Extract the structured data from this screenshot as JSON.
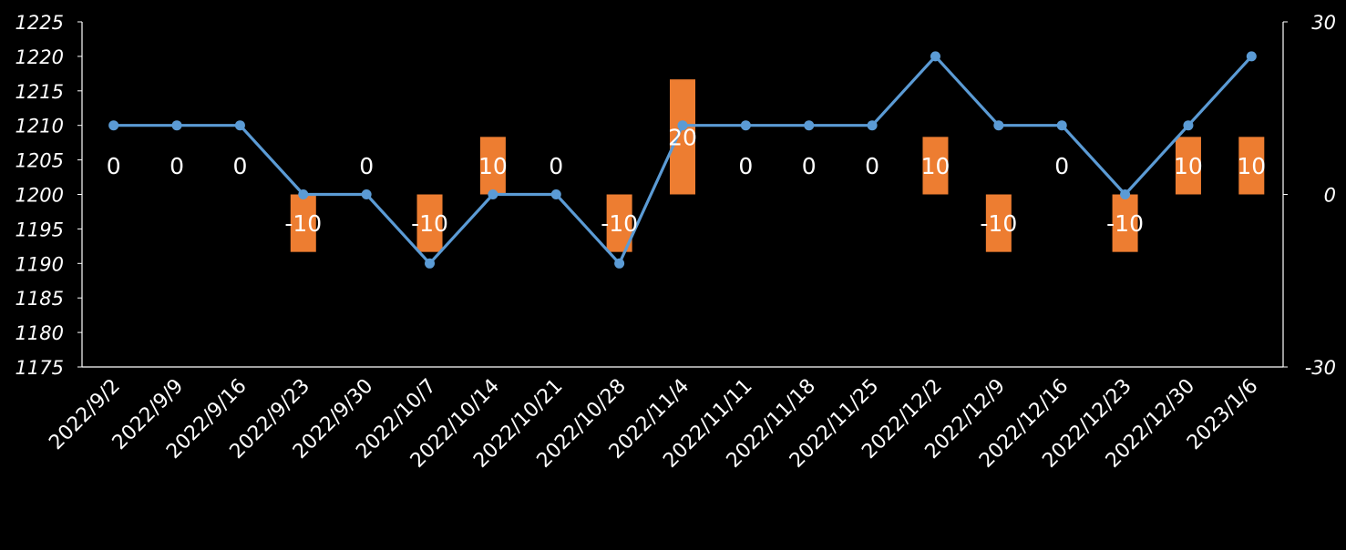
{
  "chart_data": {
    "type": "bar",
    "categories": [
      "2022/9/2",
      "2022/9/9",
      "2022/9/16",
      "2022/9/23",
      "2022/9/30",
      "2022/10/7",
      "2022/10/14",
      "2022/10/21",
      "2022/10/28",
      "2022/11/4",
      "2022/11/11",
      "2022/11/18",
      "2022/11/25",
      "2022/12/2",
      "2022/12/9",
      "2022/12/16",
      "2022/12/23",
      "2022/12/30",
      "2023/1/6"
    ],
    "series": [
      {
        "type": "line",
        "axis": "left",
        "color": "#5B9BD5",
        "values": [
          1210,
          1210,
          1210,
          1200,
          1200,
          1190,
          1200,
          1200,
          1190,
          1210,
          1210,
          1210,
          1210,
          1220,
          1210,
          1210,
          1200,
          1210,
          1220
        ]
      },
      {
        "type": "bar",
        "axis": "right",
        "color": "#ED7D31",
        "values": [
          0,
          0,
          0,
          -10,
          0,
          -10,
          10,
          0,
          -10,
          20,
          0,
          0,
          0,
          10,
          -10,
          0,
          -10,
          10,
          10
        ],
        "data_labels": [
          "0",
          "0",
          "0",
          "-10",
          "0",
          "-10",
          "10",
          "0",
          "-10",
          "20",
          "0",
          "0",
          "0",
          "10",
          "-10",
          "0",
          "-10",
          "10",
          "10"
        ]
      }
    ],
    "y_left": {
      "min": 1175,
      "max": 1225,
      "ticks": [
        "1225",
        "1220",
        "1215",
        "1210",
        "1205",
        "1200",
        "1195",
        "1190",
        "1185",
        "1180",
        "1175"
      ]
    },
    "y_right": {
      "min": -30,
      "max": 30,
      "ticks": [
        "30",
        "0",
        "-30"
      ]
    },
    "grid": false,
    "legend": "none",
    "title": "",
    "xlabel": "",
    "ylabel": ""
  }
}
